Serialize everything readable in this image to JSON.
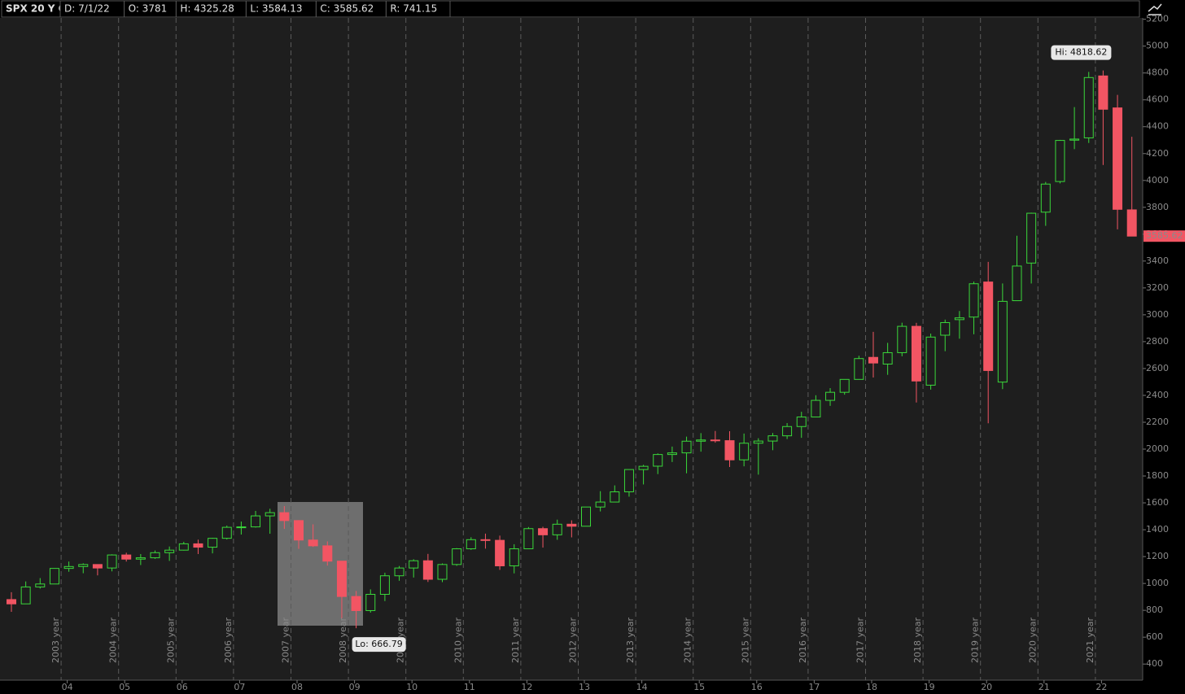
{
  "chart_data": {
    "type": "candlestick",
    "title": "SPX 20 Y Q",
    "header_fields": [
      "D: 7/1/22",
      "O: 3781",
      "H: 4325.28",
      "L: 3584.13",
      "C: 3585.62",
      "R: 741.15"
    ],
    "categories": [
      null,
      null,
      null,
      null,
      "04",
      null,
      null,
      null,
      "05",
      null,
      null,
      null,
      "06",
      null,
      null,
      null,
      "07",
      null,
      null,
      null,
      "08",
      null,
      null,
      null,
      "09",
      null,
      null,
      null,
      "10",
      null,
      null,
      null,
      "11",
      null,
      null,
      null,
      "12",
      null,
      null,
      null,
      "13",
      null,
      null,
      null,
      "14",
      null,
      null,
      null,
      "15",
      null,
      null,
      null,
      "16",
      null,
      null,
      null,
      "17",
      null,
      null,
      null,
      "18",
      null,
      null,
      null,
      "19",
      null,
      null,
      null,
      "20",
      null,
      null,
      null,
      "21",
      null,
      null,
      null,
      "22",
      null,
      null
    ],
    "period_labels": [
      "2003 year",
      "2004 year",
      "2005 year",
      "2006 year",
      "2007 year",
      "2008 year",
      "2009 year",
      "2010 year",
      "2011 year",
      "2012 year",
      "2013 year",
      "2014 year",
      "2015 year",
      "2016 year",
      "2017 year",
      "2018 year",
      "2019 year",
      "2020 year",
      "2021 year"
    ],
    "open": [
      880,
      848,
      974,
      996,
      1112,
      1126,
      1141,
      1115,
      1212,
      1181,
      1191,
      1229,
      1248,
      1295,
      1270,
      1336,
      1418,
      1421,
      1503,
      1527,
      1468,
      1323,
      1280,
      1166,
      903,
      798,
      919,
      1057,
      1115,
      1169,
      1031,
      1141,
      1258,
      1326,
      1321,
      1131,
      1258,
      1408,
      1362,
      1441,
      1426,
      1569,
      1606,
      1682,
      1848,
      1873,
      1960,
      1972,
      2059,
      2068,
      2063,
      1920,
      2044,
      2060,
      2099,
      2168,
      2239,
      2363,
      2423,
      2519,
      2683,
      2633,
      2718,
      2914,
      2476,
      2848,
      2964,
      2983,
      3244,
      2499,
      3105,
      3385,
      3764,
      3992,
      4300,
      4317,
      4778,
      4540,
      3781
    ],
    "high": [
      935,
      1015,
      1040,
      1112,
      1163,
      1150,
      1141,
      1217,
      1229,
      1219,
      1245,
      1275,
      1310,
      1326,
      1340,
      1431,
      1461,
      1540,
      1556,
      1576,
      1471,
      1440,
      1313,
      1167,
      944,
      956,
      1080,
      1130,
      1180,
      1220,
      1149,
      1263,
      1344,
      1371,
      1356,
      1292,
      1420,
      1422,
      1475,
      1470,
      1570,
      1687,
      1730,
      1849,
      1883,
      1968,
      2019,
      2093,
      2119,
      2135,
      2133,
      2116,
      2081,
      2120,
      2194,
      2278,
      2401,
      2454,
      2519,
      2695,
      2873,
      2791,
      2941,
      2940,
      2860,
      2964,
      3028,
      3247,
      3394,
      3233,
      3588,
      3760,
      3989,
      4302,
      4546,
      4808,
      4818.62,
      4637,
      4325.28
    ],
    "low": [
      789,
      847,
      962,
      996,
      1087,
      1076,
      1060,
      1090,
      1163,
      1137,
      1183,
      1168,
      1245,
      1219,
      1224,
      1327,
      1364,
      1416,
      1370,
      1406,
      1257,
      1272,
      1133,
      741,
      666.79,
      783,
      869,
      1020,
      1044,
      1011,
      1010,
      1131,
      1250,
      1259,
      1101,
      1075,
      1258,
      1267,
      1325,
      1343,
      1426,
      1536,
      1604,
      1646,
      1737,
      1814,
      1904,
      1820,
      1981,
      2048,
      1867,
      1872,
      1810,
      1992,
      2075,
      2084,
      2245,
      2322,
      2405,
      2520,
      2533,
      2553,
      2691,
      2347,
      2443,
      2729,
      2822,
      2855,
      2192,
      2447,
      3105,
      3233,
      3662,
      3978,
      4233,
      4279,
      4115,
      3636,
      3584.13
    ],
    "close": [
      848,
      974,
      996,
      1112,
      1126,
      1141,
      1115,
      1212,
      1181,
      1191,
      1229,
      1248,
      1295,
      1270,
      1336,
      1418,
      1421,
      1503,
      1527,
      1468,
      1323,
      1280,
      1166,
      903,
      798,
      919,
      1057,
      1115,
      1169,
      1031,
      1141,
      1258,
      1326,
      1321,
      1131,
      1258,
      1408,
      1362,
      1441,
      1426,
      1569,
      1606,
      1682,
      1848,
      1872,
      1960,
      1972,
      2059,
      2068,
      2063,
      1920,
      2044,
      2060,
      2099,
      2168,
      2239,
      2363,
      2423,
      2519,
      2674,
      2641,
      2718,
      2914,
      2507,
      2834,
      2942,
      2977,
      3231,
      2585,
      3100,
      3363,
      3756,
      3973,
      4298,
      4308,
      4766,
      4530,
      3785,
      3585.62
    ],
    "up_color": "#3ad83a",
    "down_color": "#f25563",
    "ylim": [
      280,
      5210
    ],
    "yticks": [
      400,
      600,
      800,
      1000,
      1200,
      1400,
      1600,
      1800,
      2000,
      2200,
      2400,
      2600,
      2800,
      3000,
      3200,
      3400,
      3600,
      3800,
      4000,
      4200,
      4400,
      4600,
      4800,
      5000,
      5200
    ],
    "high_label": "Hi: 4818.62",
    "low_label": "Lo: 666.79"
  }
}
